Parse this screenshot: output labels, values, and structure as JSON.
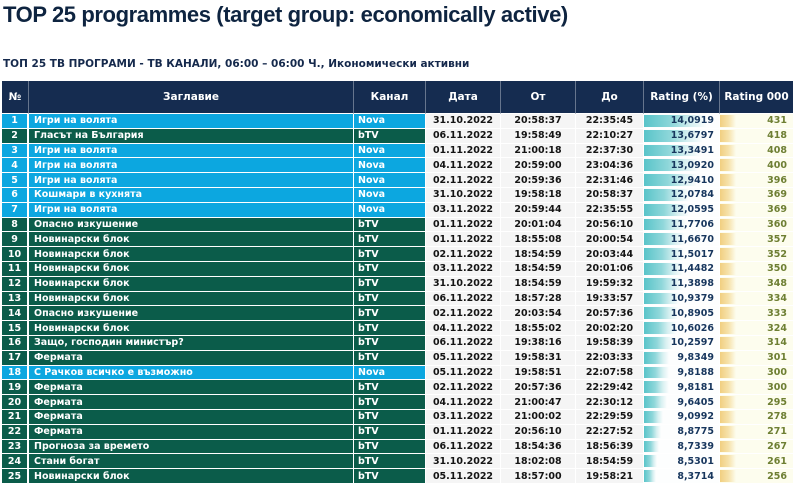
{
  "page": {
    "title": "TOP 25 programmes (target group: economically active)",
    "subtitle": "ТОП 25 ТВ ПРОГРАМИ - ТВ КАНАЛИ, 06:00 – 06:00 Ч., Икономически активни"
  },
  "table": {
    "headers": [
      "№",
      "Заглавие",
      "Канал",
      "Дата",
      "От",
      "До",
      "Rating (%)",
      "Rating 000"
    ],
    "channel_colors": {
      "Nova": "#0ca7e0",
      "bTV": "#0b5c4a"
    },
    "rating_bar": {
      "min": 8.3714,
      "max": 14.0919,
      "min_pct": 16,
      "max_pct": 84,
      "bar_color": "#59c4c9"
    },
    "rows": [
      {
        "no": 1,
        "title": "Игри на волята",
        "channel": "Nova",
        "date": "31.10.2022",
        "from": "20:58:37",
        "to": "22:35:45",
        "rating": "14,0919",
        "rating000": 431
      },
      {
        "no": 2,
        "title": "Гласът на България",
        "channel": "bTV",
        "date": "06.11.2022",
        "from": "19:58:49",
        "to": "22:10:27",
        "rating": "13,6797",
        "rating000": 418
      },
      {
        "no": 3,
        "title": "Игри на волята",
        "channel": "Nova",
        "date": "01.11.2022",
        "from": "21:00:18",
        "to": "22:37:30",
        "rating": "13,3491",
        "rating000": 408
      },
      {
        "no": 4,
        "title": "Игри на волята",
        "channel": "Nova",
        "date": "04.11.2022",
        "from": "20:59:00",
        "to": "23:04:36",
        "rating": "13,0920",
        "rating000": 400
      },
      {
        "no": 5,
        "title": "Игри на волята",
        "channel": "Nova",
        "date": "02.11.2022",
        "from": "20:59:36",
        "to": "22:31:46",
        "rating": "12,9410",
        "rating000": 396
      },
      {
        "no": 6,
        "title": "Кошмари в кухнята",
        "channel": "Nova",
        "date": "31.10.2022",
        "from": "19:58:18",
        "to": "20:58:37",
        "rating": "12,0784",
        "rating000": 369
      },
      {
        "no": 7,
        "title": "Игри на волята",
        "channel": "Nova",
        "date": "03.11.2022",
        "from": "20:59:44",
        "to": "22:35:55",
        "rating": "12,0595",
        "rating000": 369
      },
      {
        "no": 8,
        "title": "Опасно изкушение",
        "channel": "bTV",
        "date": "01.11.2022",
        "from": "20:01:04",
        "to": "20:56:10",
        "rating": "11,7706",
        "rating000": 360
      },
      {
        "no": 9,
        "title": "Новинарски блок",
        "channel": "bTV",
        "date": "01.11.2022",
        "from": "18:55:08",
        "to": "20:00:54",
        "rating": "11,6670",
        "rating000": 357
      },
      {
        "no": 10,
        "title": "Новинарски блок",
        "channel": "bTV",
        "date": "02.11.2022",
        "from": "18:54:59",
        "to": "20:03:44",
        "rating": "11,5017",
        "rating000": 352
      },
      {
        "no": 11,
        "title": "Новинарски блок",
        "channel": "bTV",
        "date": "03.11.2022",
        "from": "18:54:59",
        "to": "20:01:06",
        "rating": "11,4482",
        "rating000": 350
      },
      {
        "no": 12,
        "title": "Новинарски блок",
        "channel": "bTV",
        "date": "31.10.2022",
        "from": "18:54:59",
        "to": "19:59:32",
        "rating": "11,3898",
        "rating000": 348
      },
      {
        "no": 13,
        "title": "Новинарски блок",
        "channel": "bTV",
        "date": "06.11.2022",
        "from": "18:57:28",
        "to": "19:33:57",
        "rating": "10,9379",
        "rating000": 334
      },
      {
        "no": 14,
        "title": "Опасно изкушение",
        "channel": "bTV",
        "date": "02.11.2022",
        "from": "20:03:54",
        "to": "20:57:36",
        "rating": "10,8905",
        "rating000": 333
      },
      {
        "no": 15,
        "title": "Новинарски блок",
        "channel": "bTV",
        "date": "04.11.2022",
        "from": "18:55:02",
        "to": "20:02:20",
        "rating": "10,6026",
        "rating000": 324
      },
      {
        "no": 16,
        "title": "Защо, господин министър?",
        "channel": "bTV",
        "date": "06.11.2022",
        "from": "19:38:16",
        "to": "19:58:39",
        "rating": "10,2597",
        "rating000": 314
      },
      {
        "no": 17,
        "title": "Фермата",
        "channel": "bTV",
        "date": "05.11.2022",
        "from": "19:58:31",
        "to": "22:03:33",
        "rating": "9,8349",
        "rating000": 301
      },
      {
        "no": 18,
        "title": "С Рачков всичко е възможно",
        "channel": "Nova",
        "date": "05.11.2022",
        "from": "19:58:51",
        "to": "22:07:58",
        "rating": "9,8188",
        "rating000": 300
      },
      {
        "no": 19,
        "title": "Фермата",
        "channel": "bTV",
        "date": "02.11.2022",
        "from": "20:57:36",
        "to": "22:29:42",
        "rating": "9,8181",
        "rating000": 300
      },
      {
        "no": 20,
        "title": "Фермата",
        "channel": "bTV",
        "date": "04.11.2022",
        "from": "21:00:47",
        "to": "22:30:12",
        "rating": "9,6405",
        "rating000": 295
      },
      {
        "no": 21,
        "title": "Фермата",
        "channel": "bTV",
        "date": "03.11.2022",
        "from": "21:00:02",
        "to": "22:29:59",
        "rating": "9,0992",
        "rating000": 278
      },
      {
        "no": 22,
        "title": "Фермата",
        "channel": "bTV",
        "date": "01.11.2022",
        "from": "20:56:10",
        "to": "22:27:52",
        "rating": "8,8775",
        "rating000": 271
      },
      {
        "no": 23,
        "title": "Прогноза за времето",
        "channel": "bTV",
        "date": "06.11.2022",
        "from": "18:54:36",
        "to": "18:56:39",
        "rating": "8,7339",
        "rating000": 267
      },
      {
        "no": 24,
        "title": "Стани богат",
        "channel": "bTV",
        "date": "31.10.2022",
        "from": "18:02:08",
        "to": "18:54:59",
        "rating": "8,5301",
        "rating000": 261
      },
      {
        "no": 25,
        "title": "Новинарски блок",
        "channel": "bTV",
        "date": "05.11.2022",
        "from": "18:57:00",
        "to": "19:58:21",
        "rating": "8,3714",
        "rating000": 256
      }
    ]
  }
}
